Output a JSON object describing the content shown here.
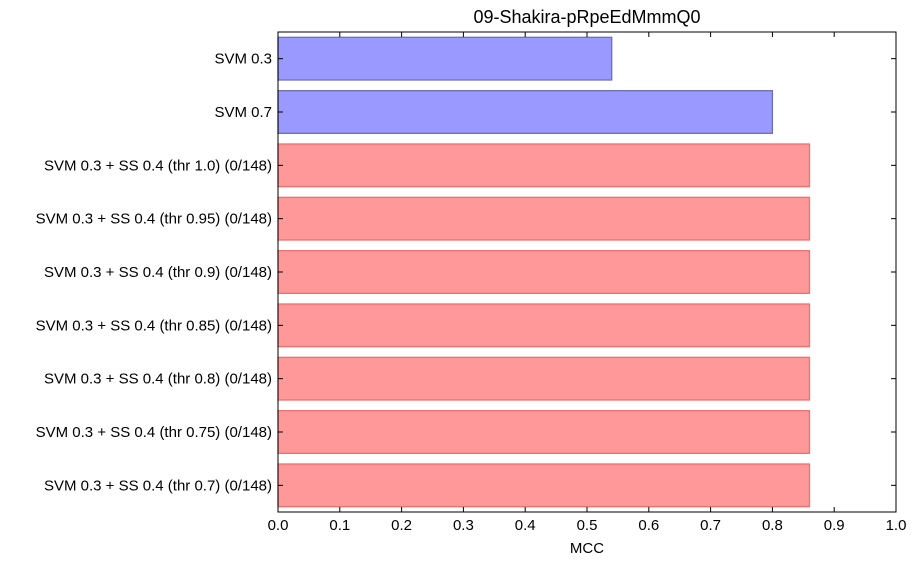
{
  "chart_data": {
    "type": "bar",
    "orientation": "horizontal",
    "title": "09-Shakira-pRpeEdMmmQ0",
    "xlabel": "MCC",
    "ylabel": "",
    "xlim": [
      0.0,
      1.0
    ],
    "xticks": [
      "0.0",
      "0.1",
      "0.2",
      "0.3",
      "0.4",
      "0.5",
      "0.6",
      "0.7",
      "0.8",
      "0.9",
      "1.0"
    ],
    "grid": false,
    "categories": [
      "SVM 0.3",
      "SVM 0.7",
      "SVM 0.3 + SS 0.4 (thr 1.0) (0/148)",
      "SVM 0.3 + SS 0.4 (thr 0.95) (0/148)",
      "SVM 0.3 + SS 0.4 (thr 0.9) (0/148)",
      "SVM 0.3 + SS 0.4 (thr 0.85) (0/148)",
      "SVM 0.3 + SS 0.4 (thr 0.8) (0/148)",
      "SVM 0.3 + SS 0.4 (thr 0.75) (0/148)",
      "SVM 0.3 + SS 0.4 (thr 0.7) (0/148)"
    ],
    "values": [
      0.54,
      0.8,
      0.86,
      0.86,
      0.86,
      0.86,
      0.86,
      0.86,
      0.86
    ],
    "bar_colors": [
      "blue",
      "blue",
      "red",
      "red",
      "red",
      "red",
      "red",
      "red",
      "red"
    ],
    "colors": {
      "blue_fill": "#9999ff",
      "blue_edge": "#6f6fb0",
      "red_fill": "#ff9999",
      "red_edge": "#f07070",
      "axis": "#000000"
    }
  }
}
